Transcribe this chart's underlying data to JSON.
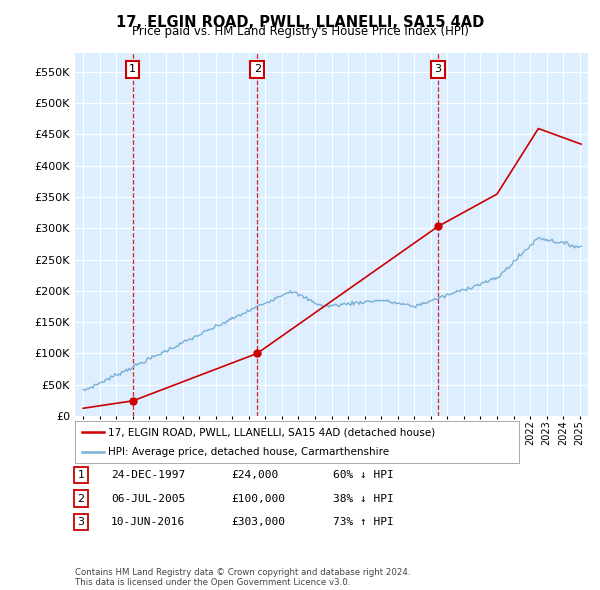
{
  "title": "17, ELGIN ROAD, PWLL, LLANELLI, SA15 4AD",
  "subtitle": "Price paid vs. HM Land Registry's House Price Index (HPI)",
  "property_label": "17, ELGIN ROAD, PWLL, LLANELLI, SA15 4AD (detached house)",
  "hpi_label": "HPI: Average price, detached house, Carmarthenshire",
  "sale_color": "#cc0000",
  "hpi_color": "#7aafd4",
  "background_color": "#ddeeff",
  "sales": [
    {
      "date_num": 1997.98,
      "price": 24000,
      "label": "1"
    },
    {
      "date_num": 2005.51,
      "price": 100000,
      "label": "2"
    },
    {
      "date_num": 2016.44,
      "price": 303000,
      "label": "3"
    }
  ],
  "table_rows": [
    {
      "num": "1",
      "date": "24-DEC-1997",
      "price": "£24,000",
      "pct": "60% ↓ HPI"
    },
    {
      "num": "2",
      "date": "06-JUL-2005",
      "price": "£100,000",
      "pct": "38% ↓ HPI"
    },
    {
      "num": "3",
      "date": "10-JUN-2016",
      "price": "£303,000",
      "pct": "73% ↑ HPI"
    }
  ],
  "footer": "Contains HM Land Registry data © Crown copyright and database right 2024.\nThis data is licensed under the Open Government Licence v3.0.",
  "ylim": [
    0,
    580000
  ],
  "yticks": [
    0,
    50000,
    100000,
    150000,
    200000,
    250000,
    300000,
    350000,
    400000,
    450000,
    500000,
    550000
  ],
  "xlim_start": 1994.5,
  "xlim_end": 2025.5
}
